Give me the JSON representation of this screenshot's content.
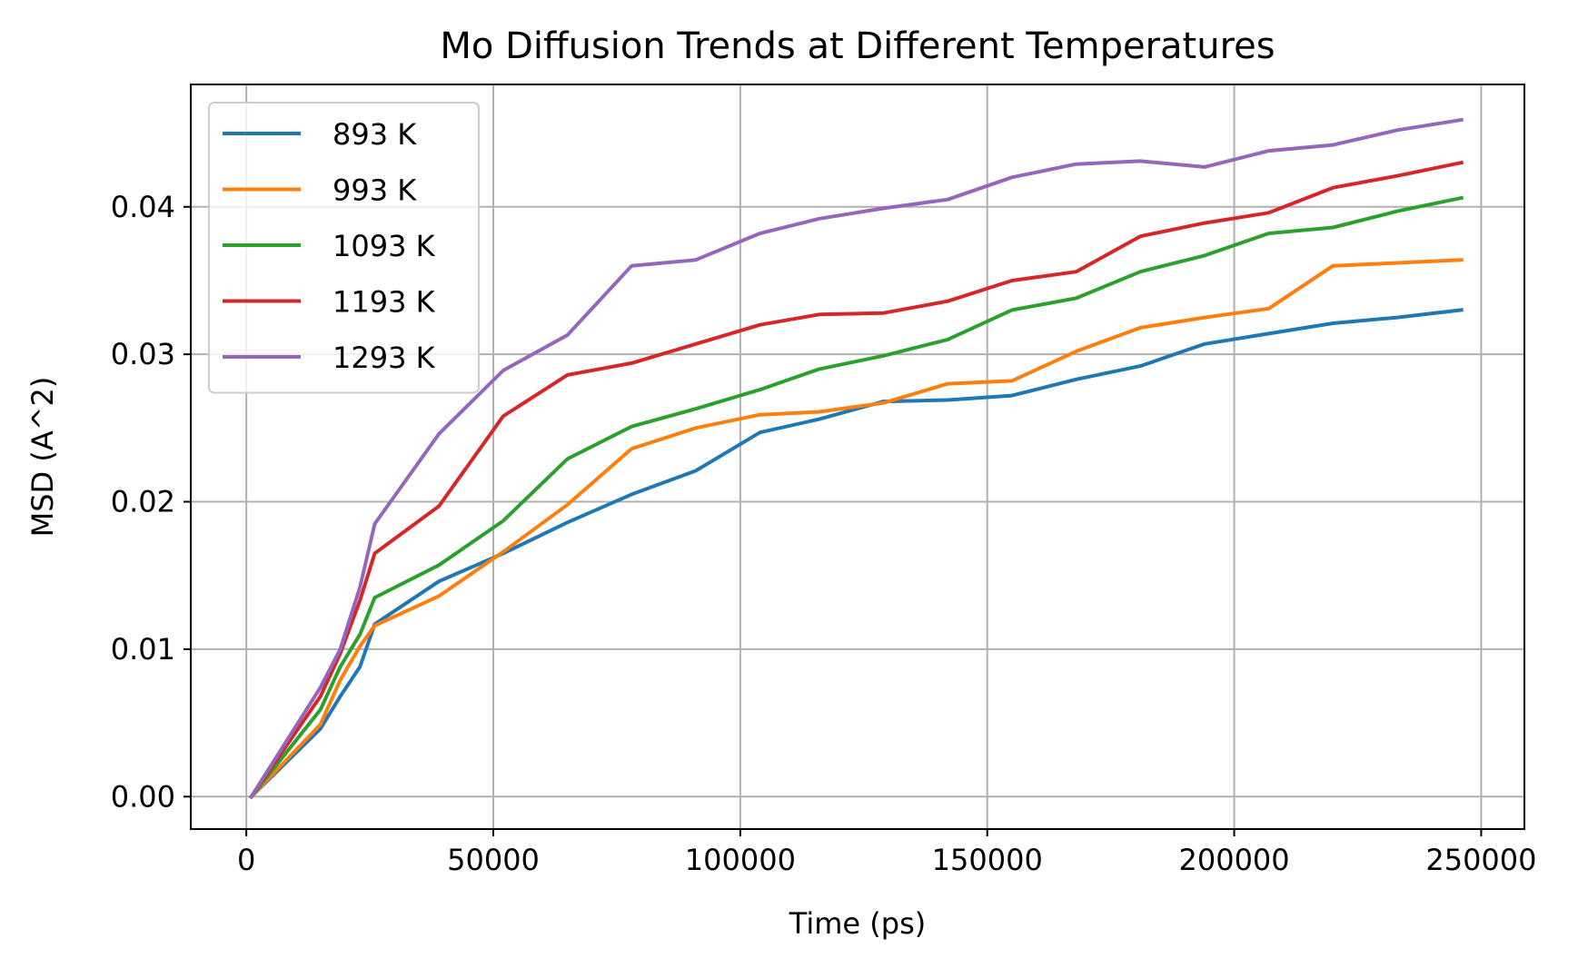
{
  "chart_data": {
    "type": "line",
    "title": "Mo Diffusion Trends at Different Temperatures",
    "xlabel": "Time (ps)",
    "ylabel": "MSD (A^2)",
    "xlim": [
      -11250,
      258750
    ],
    "ylim": [
      -0.0022,
      0.0483
    ],
    "xticks": [
      0,
      50000,
      100000,
      150000,
      200000,
      250000
    ],
    "xtick_labels": [
      "0",
      "50000",
      "100000",
      "150000",
      "200000",
      "250000"
    ],
    "yticks": [
      0.0,
      0.01,
      0.02,
      0.03,
      0.04
    ],
    "ytick_labels": [
      "0.00",
      "0.01",
      "0.02",
      "0.03",
      "0.04"
    ],
    "grid": true,
    "legend_position": "upper-left",
    "series": [
      {
        "name": "893 K",
        "color": "#1f77b4",
        "x": [
          1000,
          15000,
          19000,
          23000,
          26000,
          39000,
          52000,
          65000,
          78000,
          91000,
          104000,
          116000,
          129000,
          142000,
          155000,
          168000,
          181000,
          194000,
          207000,
          220000,
          233000,
          246000
        ],
        "y": [
          0.0,
          0.0046,
          0.0068,
          0.0088,
          0.0117,
          0.0146,
          0.0165,
          0.0186,
          0.0205,
          0.0221,
          0.0247,
          0.0256,
          0.0268,
          0.0269,
          0.0272,
          0.0283,
          0.0292,
          0.0307,
          0.0314,
          0.0321,
          0.0325,
          0.033
        ]
      },
      {
        "name": "993 K",
        "color": "#ff7f0e",
        "x": [
          1000,
          15000,
          19000,
          23000,
          26000,
          39000,
          52000,
          65000,
          78000,
          91000,
          104000,
          116000,
          129000,
          142000,
          155000,
          168000,
          181000,
          194000,
          207000,
          220000,
          233000,
          246000
        ],
        "y": [
          0.0,
          0.0049,
          0.0079,
          0.0102,
          0.0116,
          0.0136,
          0.0166,
          0.0198,
          0.0236,
          0.025,
          0.0259,
          0.0261,
          0.0267,
          0.028,
          0.0282,
          0.0302,
          0.0318,
          0.0325,
          0.0331,
          0.036,
          0.0362,
          0.0364
        ]
      },
      {
        "name": "1093 K",
        "color": "#2ca02c",
        "x": [
          1000,
          15000,
          19000,
          23000,
          26000,
          39000,
          52000,
          65000,
          78000,
          91000,
          104000,
          116000,
          129000,
          142000,
          155000,
          168000,
          181000,
          194000,
          207000,
          220000,
          233000,
          246000
        ],
        "y": [
          0.0,
          0.0059,
          0.0088,
          0.011,
          0.0135,
          0.0157,
          0.0187,
          0.0229,
          0.0251,
          0.0263,
          0.0276,
          0.029,
          0.0299,
          0.031,
          0.033,
          0.0338,
          0.0356,
          0.0367,
          0.0382,
          0.0386,
          0.0397,
          0.0406
        ]
      },
      {
        "name": "1193 K",
        "color": "#d62728",
        "x": [
          1000,
          15000,
          19000,
          23000,
          26000,
          39000,
          52000,
          65000,
          78000,
          91000,
          104000,
          116000,
          129000,
          142000,
          155000,
          168000,
          181000,
          194000,
          207000,
          220000,
          233000,
          246000
        ],
        "y": [
          0.0,
          0.0068,
          0.0097,
          0.0133,
          0.0165,
          0.0197,
          0.0258,
          0.0286,
          0.0294,
          0.0307,
          0.032,
          0.0327,
          0.0328,
          0.0336,
          0.035,
          0.0356,
          0.038,
          0.0389,
          0.0396,
          0.0413,
          0.0421,
          0.043
        ]
      },
      {
        "name": "1293 K",
        "color": "#9467bd",
        "x": [
          1000,
          15000,
          19000,
          23000,
          26000,
          39000,
          52000,
          65000,
          78000,
          91000,
          104000,
          116000,
          129000,
          142000,
          155000,
          168000,
          181000,
          194000,
          207000,
          220000,
          233000,
          246000
        ],
        "y": [
          0.0,
          0.0074,
          0.01,
          0.0142,
          0.0185,
          0.0246,
          0.0289,
          0.0313,
          0.036,
          0.0364,
          0.0382,
          0.0392,
          0.0399,
          0.0405,
          0.042,
          0.0429,
          0.0431,
          0.0427,
          0.0438,
          0.0442,
          0.0452,
          0.0459
        ]
      }
    ]
  }
}
